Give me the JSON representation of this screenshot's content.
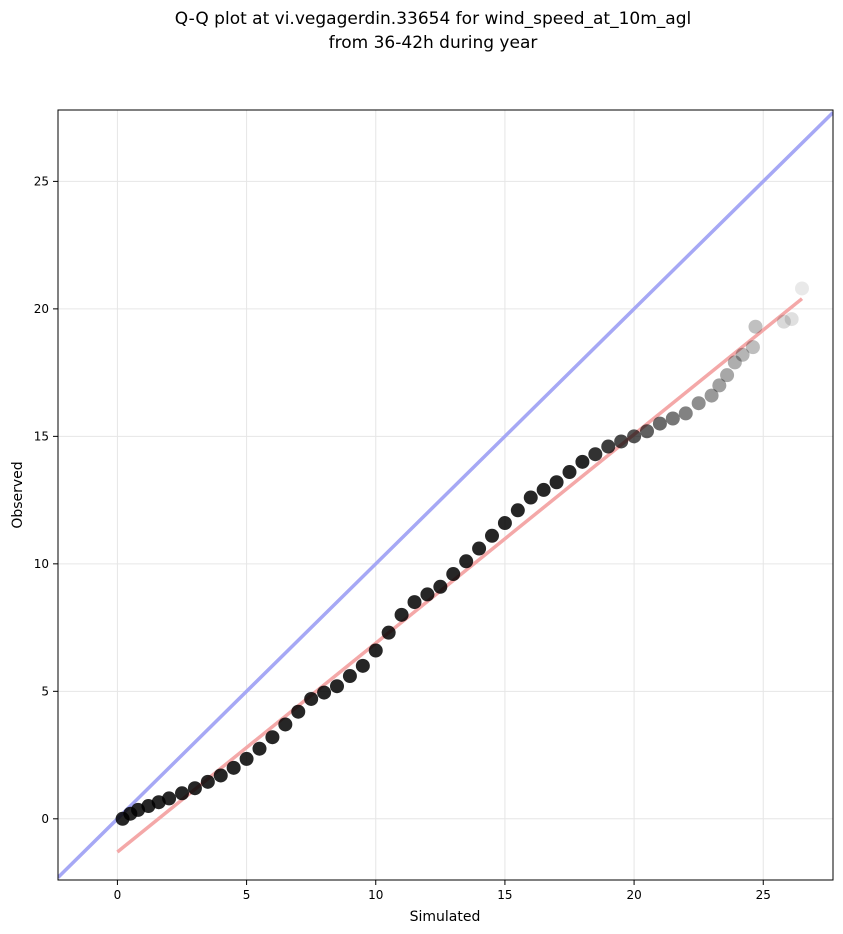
{
  "chart_data": {
    "type": "scatter",
    "title_line1": "Q-Q plot at vi.vegagerdin.33654 for wind_speed_at_10m_agl",
    "title_line2": "from 36-42h during year",
    "xlabel": "Simulated",
    "ylabel": "Observed",
    "xlim": [
      -2.3,
      27.7
    ],
    "ylim": [
      -2.4,
      27.8
    ],
    "xticks": [
      0,
      5,
      10,
      15,
      20,
      25
    ],
    "yticks": [
      0,
      5,
      10,
      15,
      20,
      25
    ],
    "grid": true,
    "series": [
      {
        "role": "identity-line",
        "color": "#a6a8f5",
        "x": [
          -2.3,
          27.7
        ],
        "y": [
          -2.3,
          27.7
        ]
      },
      {
        "role": "fit-line",
        "color": "#f3a3a3",
        "x": [
          0.0,
          26.5
        ],
        "y": [
          -1.3,
          20.4
        ]
      },
      {
        "role": "quantiles",
        "color": "#000000",
        "x": [
          0.2,
          0.5,
          0.8,
          1.2,
          1.6,
          2.0,
          2.5,
          3.0,
          3.5,
          4.0,
          4.5,
          5.0,
          5.5,
          6.0,
          6.5,
          7.0,
          7.5,
          8.0,
          8.5,
          9.0,
          9.5,
          10.0,
          10.5,
          11.0,
          11.5,
          12.0,
          12.5,
          13.0,
          13.5,
          14.0,
          14.5,
          15.0,
          15.5,
          16.0,
          16.5,
          17.0,
          17.5,
          18.0,
          18.5,
          19.0,
          19.5,
          20.0,
          20.5,
          21.0,
          21.5,
          22.0,
          22.5,
          23.0,
          23.3,
          23.6,
          23.9,
          24.2,
          24.6,
          24.7,
          25.8,
          26.1,
          26.5
        ],
        "y": [
          0.0,
          0.2,
          0.35,
          0.5,
          0.65,
          0.8,
          1.0,
          1.2,
          1.45,
          1.7,
          2.0,
          2.35,
          2.75,
          3.2,
          3.7,
          4.2,
          4.7,
          4.95,
          5.2,
          5.6,
          6.0,
          6.6,
          7.3,
          8.0,
          8.5,
          8.8,
          9.1,
          9.6,
          10.1,
          10.6,
          11.1,
          11.6,
          12.1,
          12.6,
          12.9,
          13.2,
          13.6,
          14.0,
          14.3,
          14.6,
          14.8,
          15.0,
          15.2,
          15.5,
          15.7,
          15.9,
          16.3,
          16.6,
          17.0,
          17.4,
          17.9,
          18.2,
          18.5,
          19.3,
          19.5,
          19.6,
          20.8
        ]
      }
    ]
  }
}
